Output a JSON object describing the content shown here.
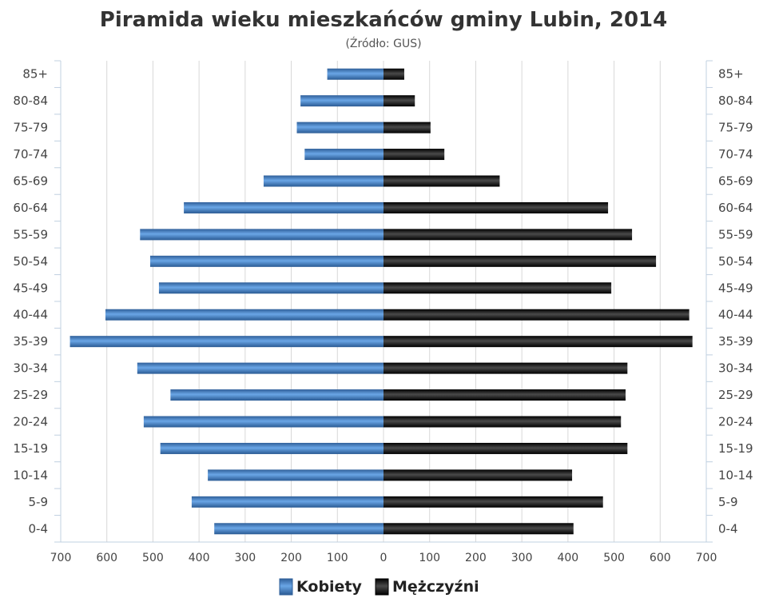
{
  "chart_data": {
    "type": "bar",
    "orientation": "horizontal-population-pyramid",
    "title": "Piramida wieku mieszkańców gminy Lubin, 2014",
    "subtitle": "(Źródło: GUS)",
    "categories": [
      "0-4",
      "5-9",
      "10-14",
      "15-19",
      "20-24",
      "25-29",
      "30-34",
      "35-39",
      "40-44",
      "45-49",
      "50-54",
      "55-59",
      "60-64",
      "65-69",
      "70-74",
      "75-79",
      "80-84",
      "85+"
    ],
    "series": [
      {
        "name": "Kobiety",
        "color": "#4a86c8",
        "values": [
          367,
          416,
          381,
          484,
          520,
          462,
          534,
          680,
          603,
          487,
          506,
          528,
          433,
          260,
          171,
          188,
          180,
          122
        ]
      },
      {
        "name": "Mężczyźni",
        "color": "#1a1a1a",
        "values": [
          412,
          476,
          409,
          529,
          515,
          525,
          529,
          670,
          663,
          494,
          591,
          539,
          487,
          252,
          132,
          102,
          68,
          45
        ]
      }
    ],
    "xlim": [
      -700,
      700
    ],
    "x_ticks": [
      "700",
      "600",
      "500",
      "400",
      "300",
      "200",
      "100",
      "0",
      "100",
      "200",
      "300",
      "400",
      "500",
      "600",
      "700"
    ],
    "grid": true,
    "legend": "bottom-center"
  }
}
